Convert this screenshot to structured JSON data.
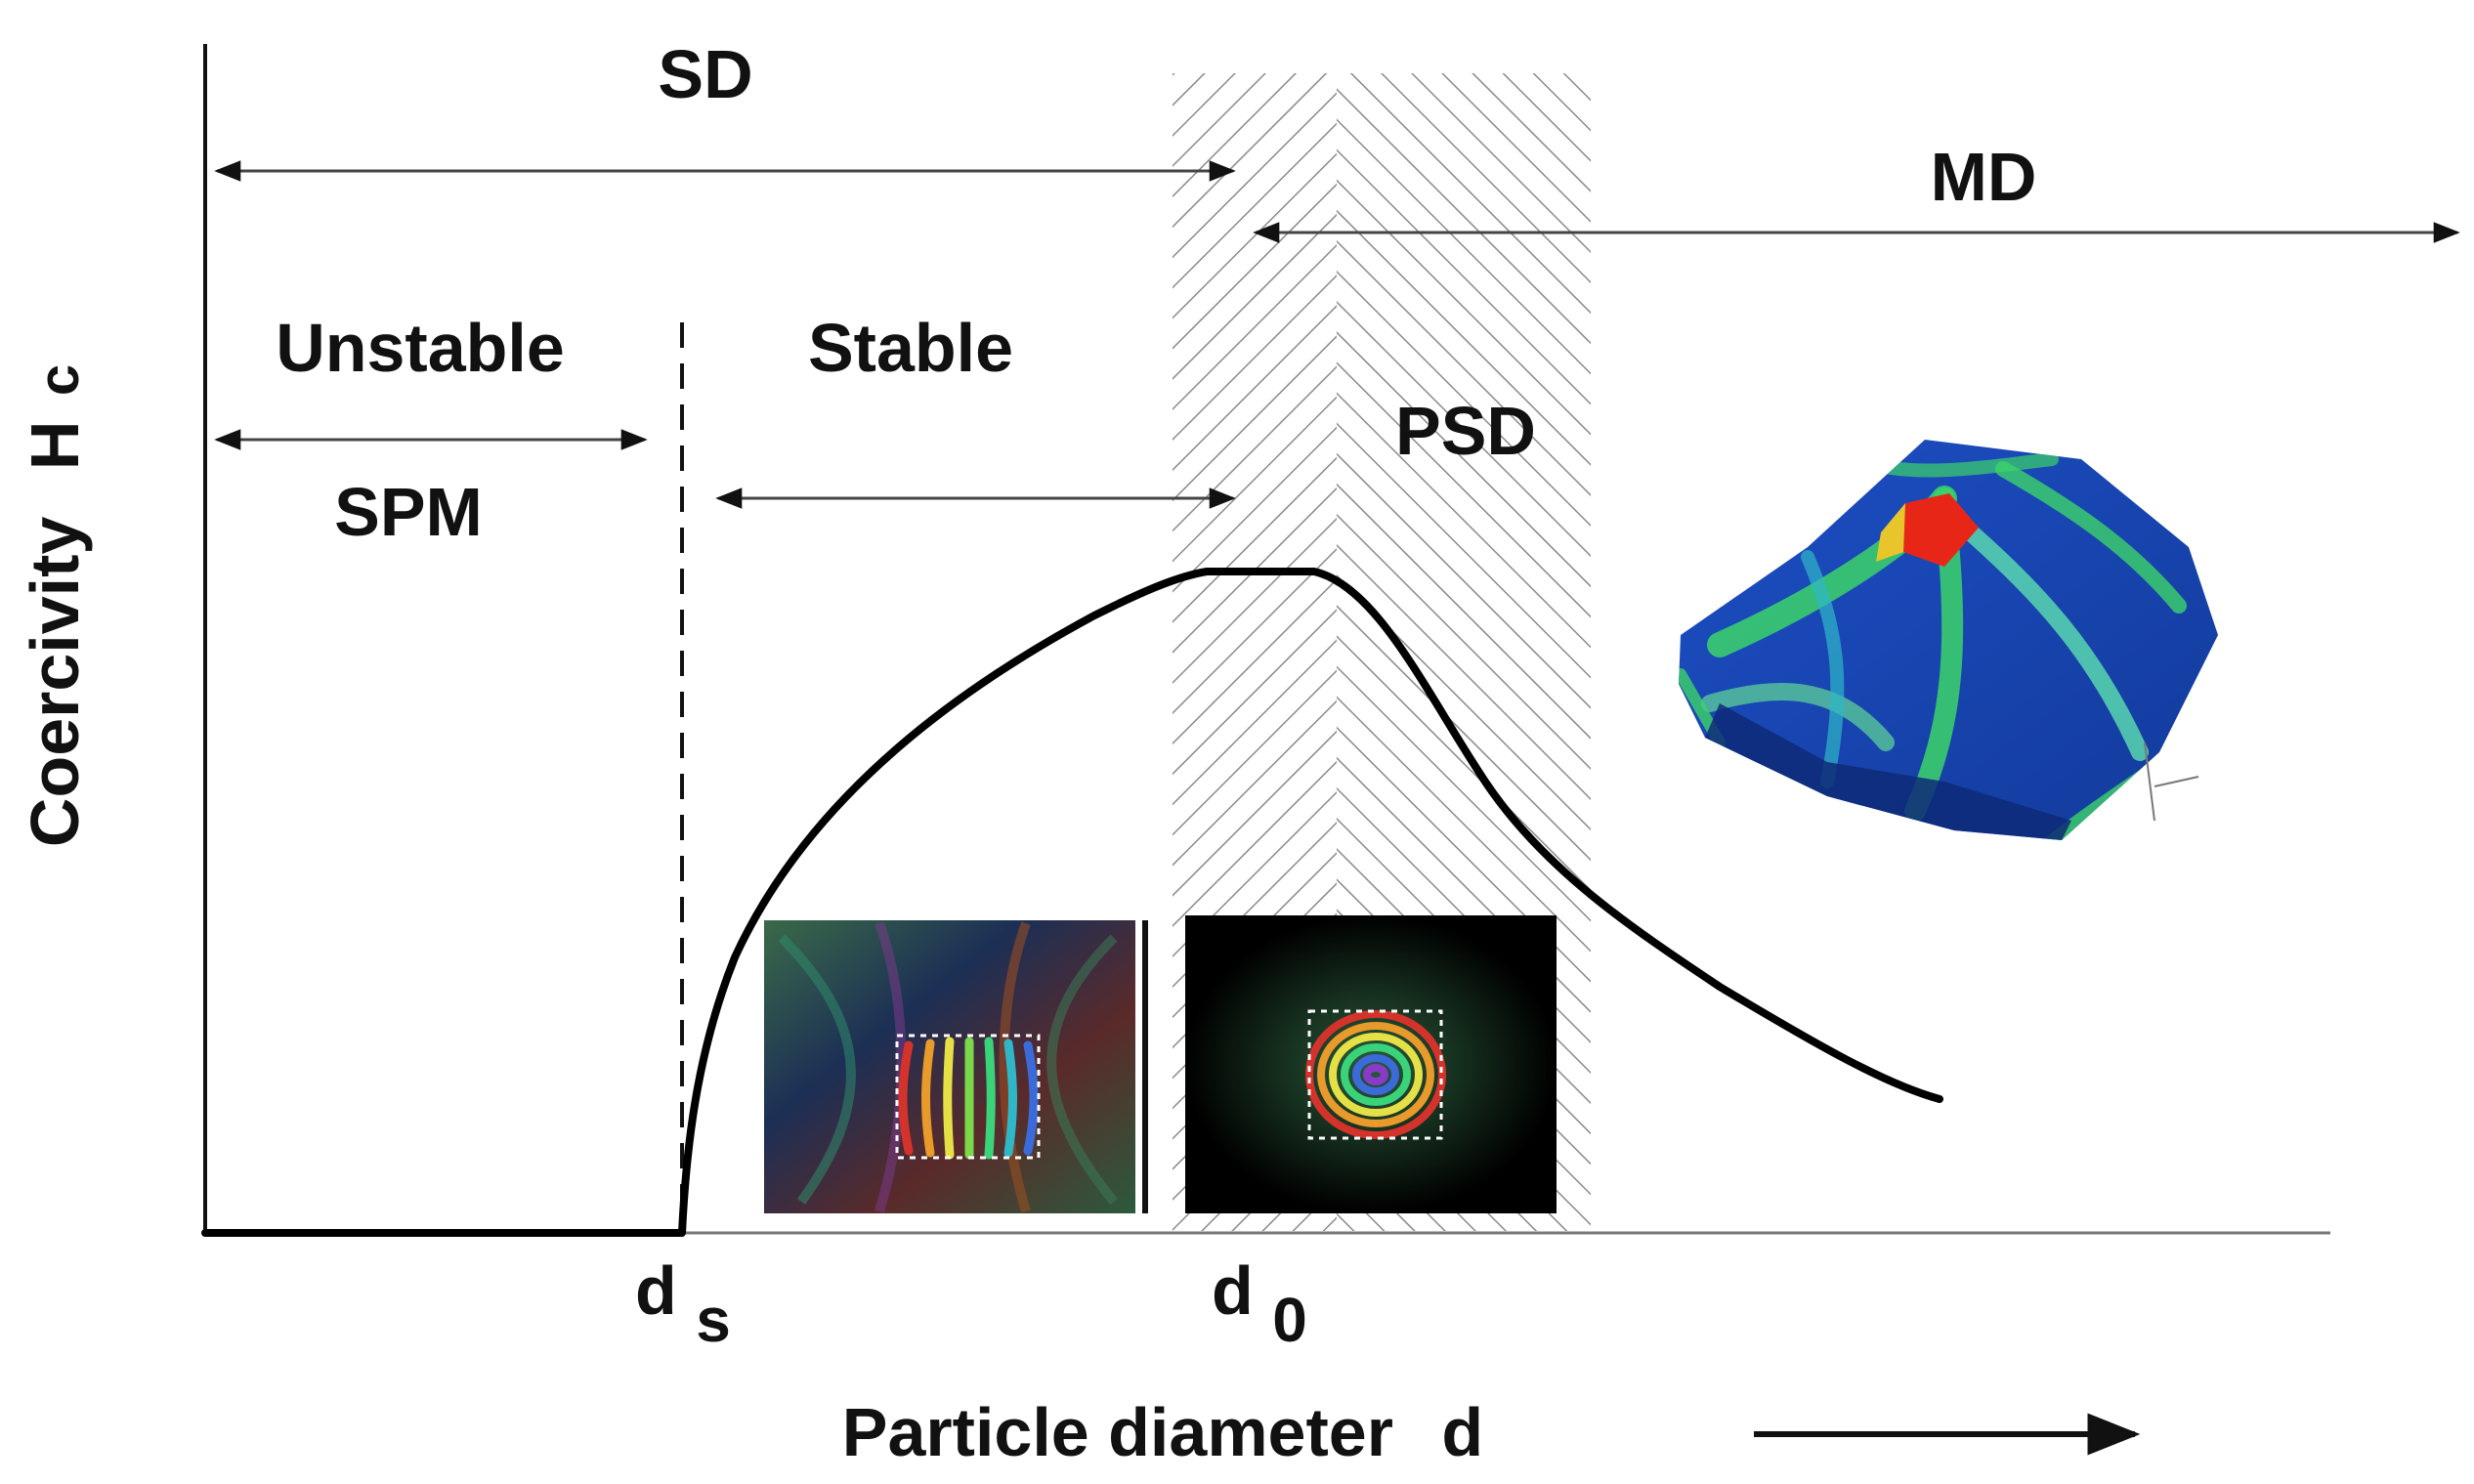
{
  "diagram": {
    "axes": {
      "y_label": "Coercivity",
      "y_symbol": "H",
      "y_subscript": "c",
      "x_label": "Particle diameter",
      "x_symbol": "d"
    },
    "ticks": {
      "ds_main": "d",
      "ds_sub": "s",
      "d0_main": "d",
      "d0_sub": "0"
    },
    "regions": {
      "sd": "SD",
      "md": "MD",
      "unstable": "Unstable",
      "stable": "Stable",
      "spm": "SPM",
      "psd": "PSD"
    },
    "insets": {
      "stable_image": "magnetization-stripes-image",
      "vortex_image": "vortex-rings-image",
      "md_grain_image": "multidomain-grain-image"
    },
    "colors": {
      "curve": "#000000",
      "hatch": "#8a8a8a",
      "field_red": "#e82618",
      "field_blue": "#1f55c8",
      "field_green": "#3cd36a"
    }
  }
}
